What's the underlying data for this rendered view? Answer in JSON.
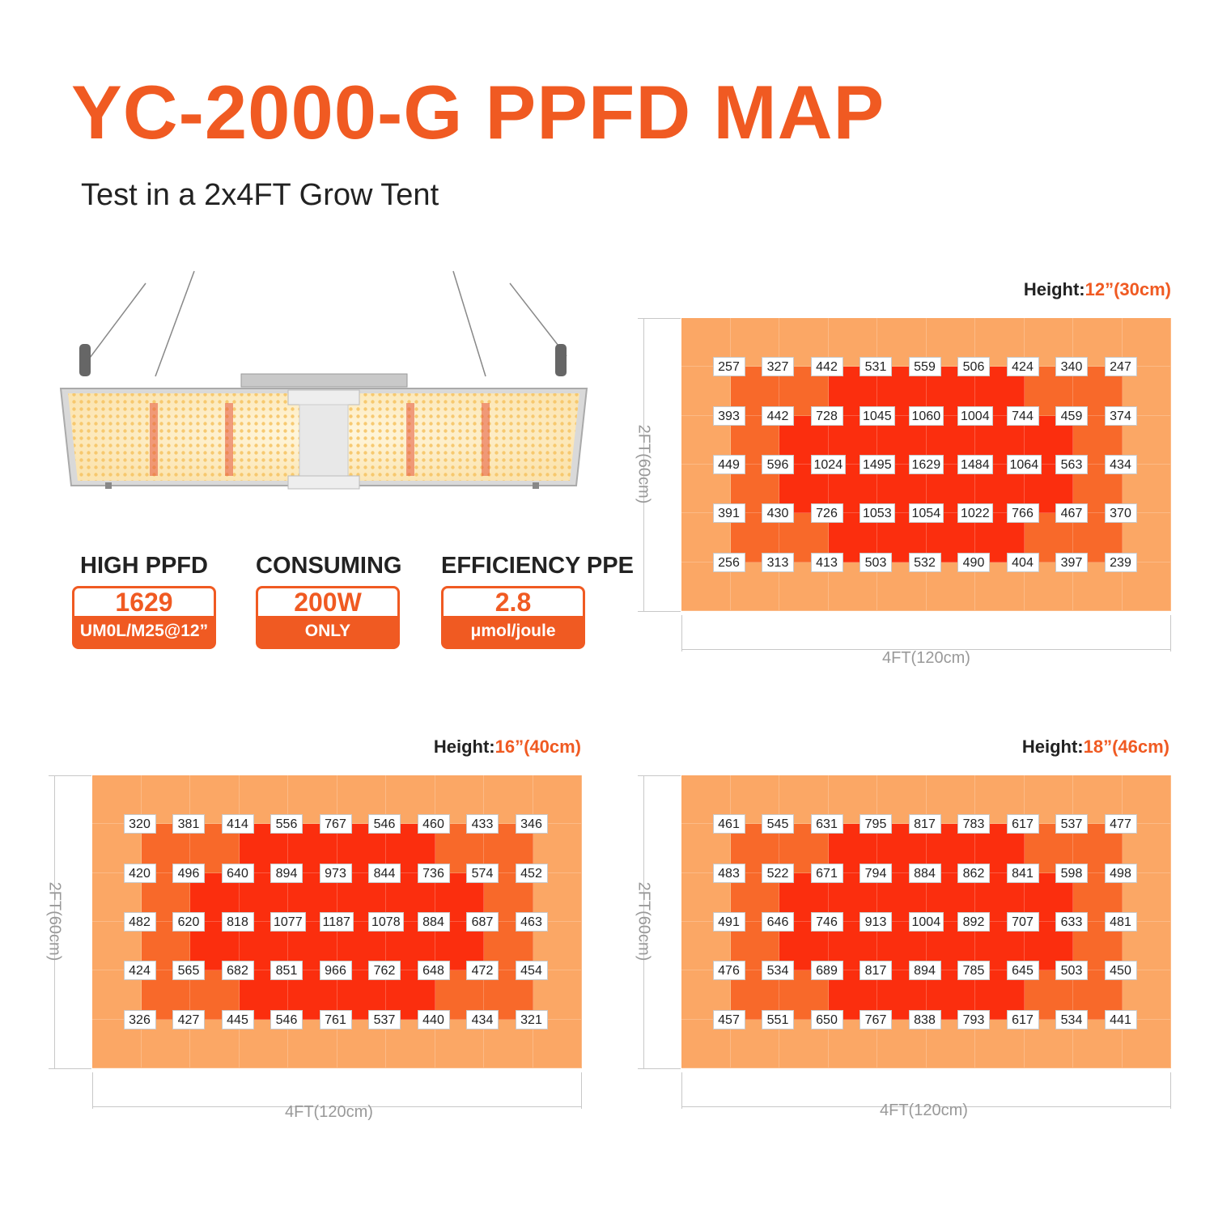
{
  "header": {
    "title": "YC-2000-G PPFD MAP",
    "subtitle": "Test in a 2x4FT Grow Tent"
  },
  "stats": [
    {
      "label": "HIGH PPFD",
      "value": "1629",
      "unit": "UM0L/M25@12”"
    },
    {
      "label": "CONSUMING",
      "value": "200W",
      "unit": "ONLY"
    },
    {
      "label": "EFFICIENCY PPE",
      "value": "2.8",
      "unit": "μmol/joule"
    }
  ],
  "colors": {
    "accent": "#f05a22",
    "zone_outer": "#fba765",
    "zone_mid": "#f8692a",
    "zone_inner": "#fb2e0e"
  },
  "chart_data": [
    {
      "type": "heatmap",
      "height_label": "Height:",
      "height_value": "12”(30cm)",
      "xlabel": "4FT(120cm)",
      "ylabel": "2FT(60cm)",
      "values": [
        [
          257,
          327,
          442,
          531,
          559,
          506,
          424,
          340,
          247
        ],
        [
          393,
          442,
          728,
          1045,
          1060,
          1004,
          744,
          459,
          374
        ],
        [
          449,
          596,
          1024,
          1495,
          1629,
          1484,
          1064,
          563,
          434
        ],
        [
          391,
          430,
          726,
          1053,
          1054,
          1022,
          766,
          467,
          370
        ],
        [
          256,
          313,
          413,
          503,
          532,
          490,
          404,
          397,
          239
        ]
      ]
    },
    {
      "type": "heatmap",
      "height_label": "Height:",
      "height_value": "16”(40cm)",
      "xlabel": "4FT(120cm)",
      "ylabel": "2FT(60cm)",
      "values": [
        [
          320,
          381,
          414,
          556,
          767,
          546,
          460,
          433,
          346
        ],
        [
          420,
          496,
          640,
          894,
          973,
          844,
          736,
          574,
          452
        ],
        [
          482,
          620,
          818,
          1077,
          1187,
          1078,
          884,
          687,
          463
        ],
        [
          424,
          565,
          682,
          851,
          966,
          762,
          648,
          472,
          454
        ],
        [
          326,
          427,
          445,
          546,
          761,
          537,
          440,
          434,
          321
        ]
      ]
    },
    {
      "type": "heatmap",
      "height_label": "Height:",
      "height_value": "18”(46cm)",
      "xlabel": "4FT(120cm)",
      "ylabel": "2FT(60cm)",
      "values": [
        [
          461,
          545,
          631,
          795,
          817,
          783,
          617,
          537,
          477
        ],
        [
          483,
          522,
          671,
          794,
          884,
          862,
          841,
          598,
          498
        ],
        [
          491,
          646,
          746,
          913,
          1004,
          892,
          707,
          633,
          481
        ],
        [
          476,
          534,
          689,
          817,
          894,
          785,
          645,
          503,
          450
        ],
        [
          457,
          551,
          650,
          767,
          838,
          793,
          617,
          534,
          441
        ]
      ]
    }
  ]
}
